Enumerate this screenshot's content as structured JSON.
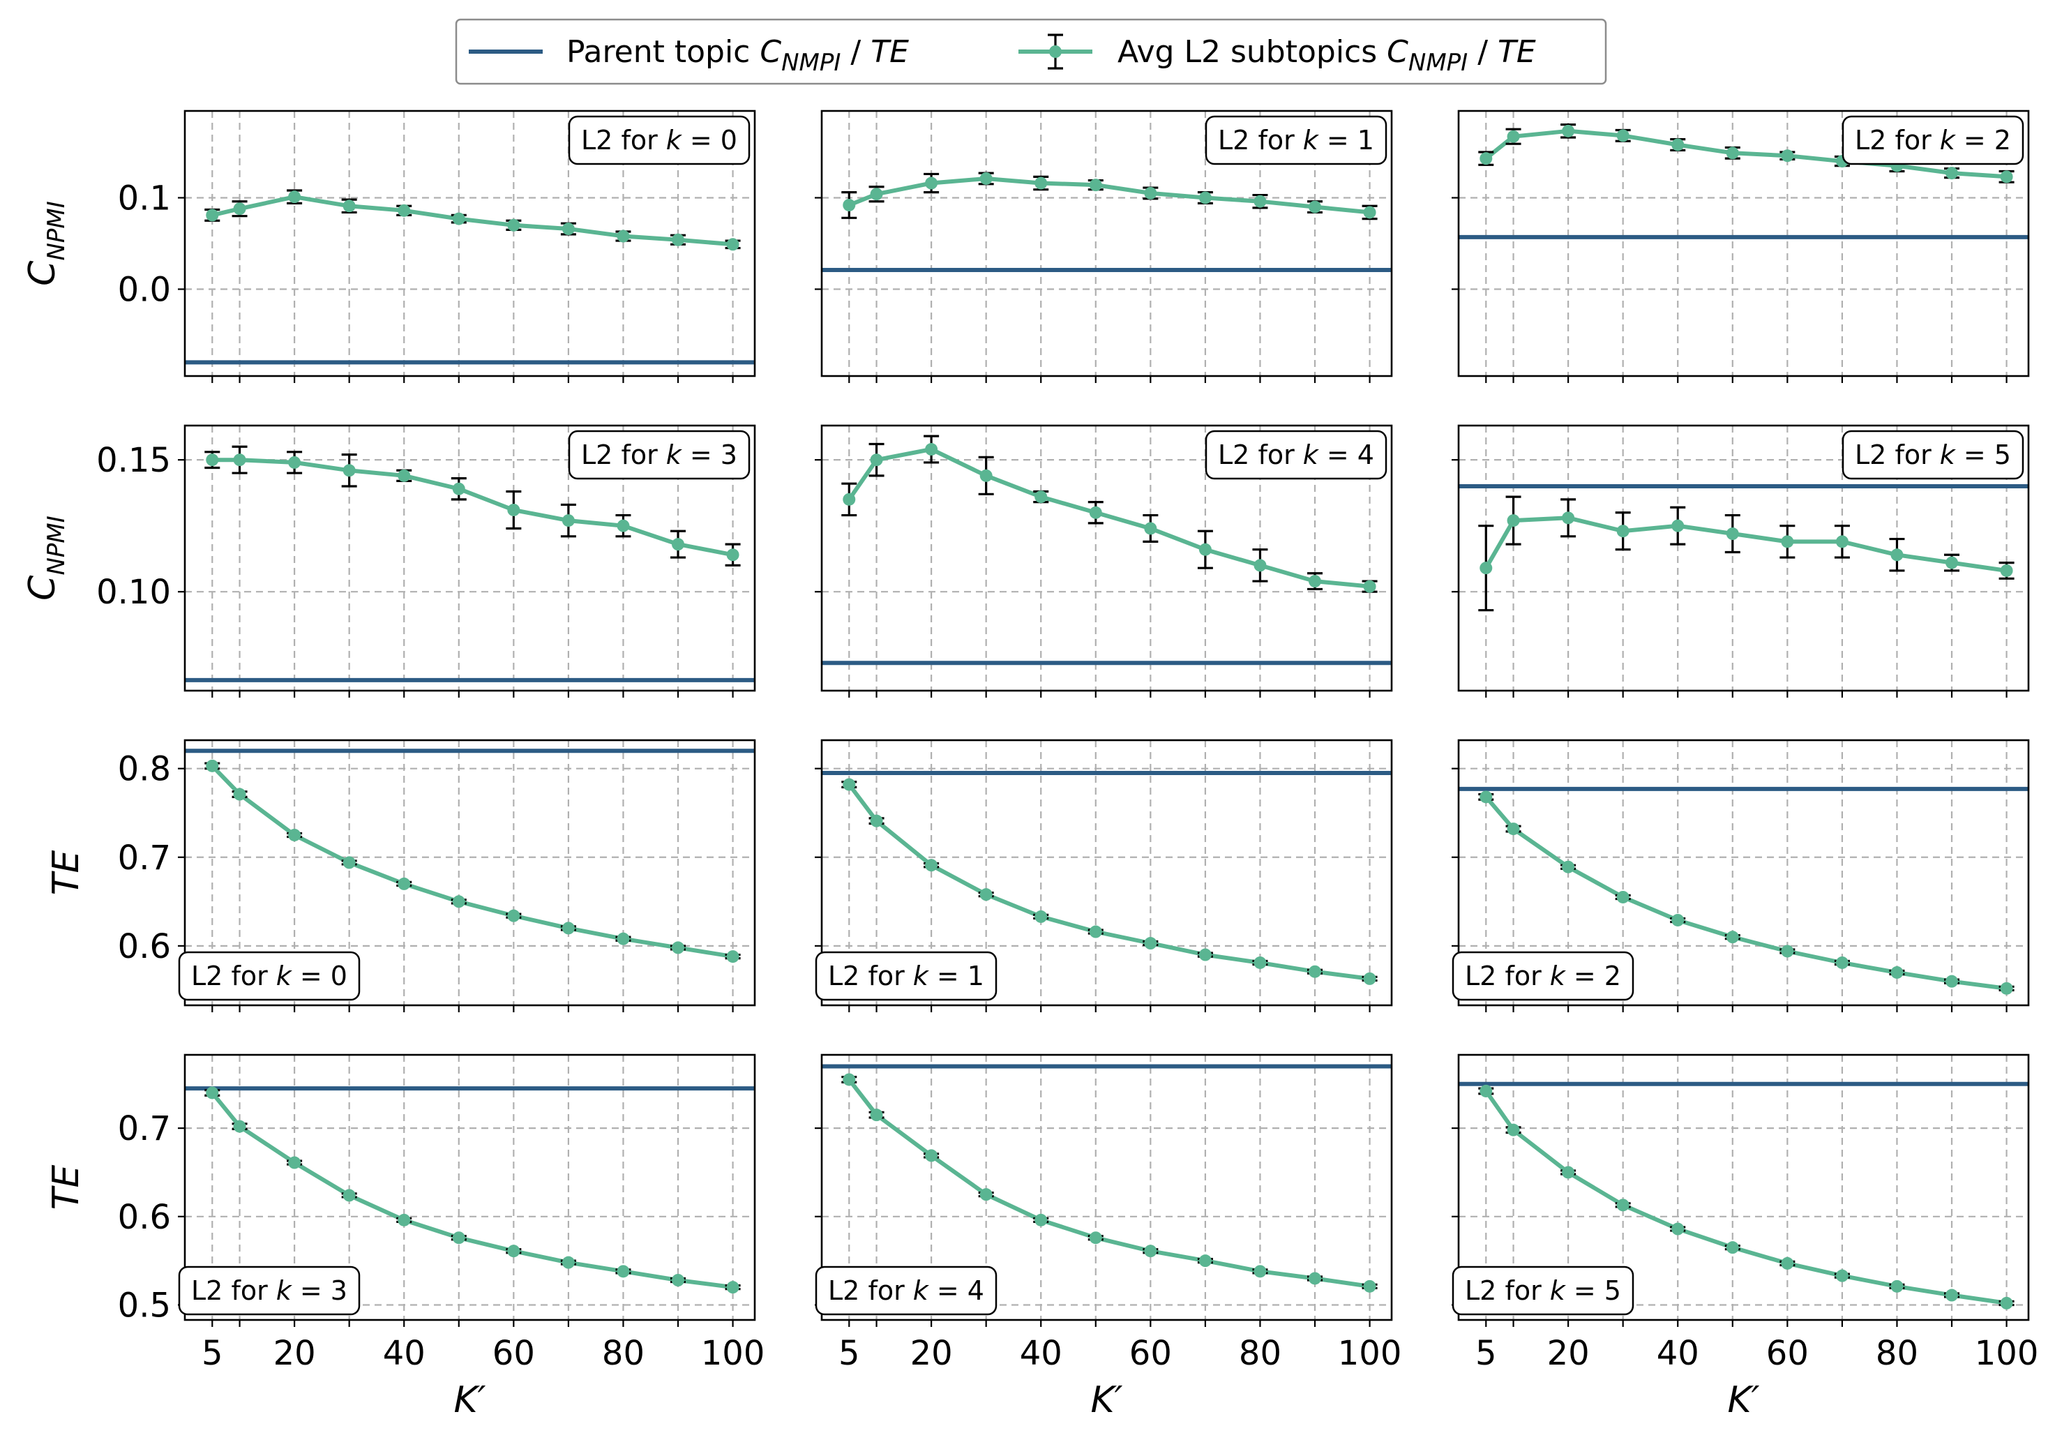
{
  "legend": {
    "parent_label": "Parent topic",
    "avg_label": "Avg L2 subtopics",
    "metric_main": "C",
    "metric_sub": "NMPI",
    "metric_sep": " / ",
    "metric_alt": "TE",
    "colors": {
      "parent": "#2c5b84",
      "avg": "#5ab592",
      "error": "#000000"
    }
  },
  "chart_data": [
    {
      "type": "line",
      "label_prefix": "L2 for ",
      "label_var": "k",
      "label_eq": " = ",
      "label_k": "0",
      "label_pos": "top-right",
      "metric": "npmi",
      "ylabel_main": "C",
      "ylabel_sub": "NPMI",
      "xlabel": "",
      "x": [
        5,
        10,
        20,
        30,
        40,
        50,
        60,
        70,
        80,
        90,
        100
      ],
      "y": [
        0.081,
        0.088,
        0.101,
        0.091,
        0.086,
        0.077,
        0.07,
        0.066,
        0.058,
        0.054,
        0.049
      ],
      "err": [
        0.006,
        0.008,
        0.007,
        0.007,
        0.005,
        0.004,
        0.005,
        0.006,
        0.005,
        0.005,
        0.004
      ],
      "parent": -0.08,
      "ylim": [
        -0.095,
        0.195
      ],
      "yticks": [
        0.0,
        0.1
      ],
      "ytick_labels": [
        "0.0",
        "0.1"
      ],
      "xticks": [
        5,
        20,
        40,
        60,
        80,
        100
      ],
      "xtick_labels": [
        "5",
        "20",
        "40",
        "60",
        "80",
        "100"
      ],
      "xgrid": [
        5,
        10,
        20,
        30,
        40,
        50,
        60,
        70,
        80,
        90,
        100
      ]
    },
    {
      "type": "line",
      "label_prefix": "L2 for ",
      "label_var": "k",
      "label_eq": " = ",
      "label_k": "1",
      "label_pos": "top-right",
      "metric": "npmi",
      "ylabel_main": "",
      "ylabel_sub": "",
      "xlabel": "",
      "x": [
        5,
        10,
        20,
        30,
        40,
        50,
        60,
        70,
        80,
        90,
        100
      ],
      "y": [
        0.092,
        0.104,
        0.116,
        0.121,
        0.116,
        0.114,
        0.105,
        0.1,
        0.096,
        0.09,
        0.084
      ],
      "err": [
        0.014,
        0.008,
        0.01,
        0.006,
        0.007,
        0.005,
        0.006,
        0.006,
        0.007,
        0.006,
        0.007
      ],
      "parent": 0.021,
      "ylim": [
        -0.095,
        0.195
      ],
      "yticks": [
        0.0,
        0.1
      ],
      "ytick_labels": [
        "",
        ""
      ],
      "xticks": [
        5,
        20,
        40,
        60,
        80,
        100
      ],
      "xtick_labels": [
        "5",
        "20",
        "40",
        "60",
        "80",
        "100"
      ],
      "xgrid": [
        5,
        10,
        20,
        30,
        40,
        50,
        60,
        70,
        80,
        90,
        100
      ]
    },
    {
      "type": "line",
      "label_prefix": "L2 for ",
      "label_var": "k",
      "label_eq": " = ",
      "label_k": "2",
      "label_pos": "top-right",
      "metric": "npmi",
      "ylabel_main": "",
      "ylabel_sub": "",
      "xlabel": "",
      "x": [
        5,
        10,
        20,
        30,
        40,
        50,
        60,
        70,
        80,
        90,
        100
      ],
      "y": [
        0.143,
        0.167,
        0.173,
        0.168,
        0.158,
        0.149,
        0.146,
        0.14,
        0.135,
        0.127,
        0.123
      ],
      "err": [
        0.007,
        0.008,
        0.007,
        0.006,
        0.006,
        0.006,
        0.004,
        0.005,
        0.006,
        0.005,
        0.006
      ],
      "parent": 0.057,
      "ylim": [
        -0.095,
        0.195
      ],
      "yticks": [
        0.0,
        0.1
      ],
      "ytick_labels": [
        "",
        ""
      ],
      "xticks": [
        5,
        20,
        40,
        60,
        80,
        100
      ],
      "xtick_labels": [
        "5",
        "20",
        "40",
        "60",
        "80",
        "100"
      ],
      "xgrid": [
        5,
        10,
        20,
        30,
        40,
        50,
        60,
        70,
        80,
        90,
        100
      ]
    },
    {
      "type": "line",
      "label_prefix": "L2 for ",
      "label_var": "k",
      "label_eq": " = ",
      "label_k": "3",
      "label_pos": "top-right",
      "metric": "npmi",
      "ylabel_main": "C",
      "ylabel_sub": "NPMI",
      "xlabel": "",
      "x": [
        5,
        10,
        20,
        30,
        40,
        50,
        60,
        70,
        80,
        90,
        100
      ],
      "y": [
        0.15,
        0.15,
        0.149,
        0.146,
        0.144,
        0.139,
        0.131,
        0.127,
        0.125,
        0.118,
        0.114
      ],
      "err": [
        0.003,
        0.005,
        0.004,
        0.006,
        0.002,
        0.004,
        0.007,
        0.006,
        0.004,
        0.005,
        0.004
      ],
      "parent": 0.0665,
      "ylim": [
        0.0625,
        0.163
      ],
      "yticks": [
        0.1,
        0.15
      ],
      "ytick_labels": [
        "0.10",
        "0.15"
      ],
      "xticks": [
        5,
        20,
        40,
        60,
        80,
        100
      ],
      "xtick_labels": [
        "5",
        "20",
        "40",
        "60",
        "80",
        "100"
      ],
      "xgrid": [
        5,
        10,
        20,
        30,
        40,
        50,
        60,
        70,
        80,
        90,
        100
      ]
    },
    {
      "type": "line",
      "label_prefix": "L2 for ",
      "label_var": "k",
      "label_eq": " = ",
      "label_k": "4",
      "label_pos": "top-right",
      "metric": "npmi",
      "ylabel_main": "",
      "ylabel_sub": "",
      "xlabel": "",
      "x": [
        5,
        10,
        20,
        30,
        40,
        50,
        60,
        70,
        80,
        90,
        100
      ],
      "y": [
        0.135,
        0.15,
        0.154,
        0.144,
        0.136,
        0.13,
        0.124,
        0.116,
        0.11,
        0.104,
        0.102
      ],
      "err": [
        0.006,
        0.006,
        0.005,
        0.007,
        0.002,
        0.004,
        0.005,
        0.007,
        0.006,
        0.003,
        0.002
      ],
      "parent": 0.073,
      "ylim": [
        0.0625,
        0.163
      ],
      "yticks": [
        0.1,
        0.15
      ],
      "ytick_labels": [
        "",
        ""
      ],
      "xticks": [
        5,
        20,
        40,
        60,
        80,
        100
      ],
      "xtick_labels": [
        "5",
        "20",
        "40",
        "60",
        "80",
        "100"
      ],
      "xgrid": [
        5,
        10,
        20,
        30,
        40,
        50,
        60,
        70,
        80,
        90,
        100
      ]
    },
    {
      "type": "line",
      "label_prefix": "L2 for ",
      "label_var": "k",
      "label_eq": " = ",
      "label_k": "5",
      "label_pos": "top-right",
      "metric": "npmi",
      "ylabel_main": "",
      "ylabel_sub": "",
      "xlabel": "",
      "x": [
        5,
        10,
        20,
        30,
        40,
        50,
        60,
        70,
        80,
        90,
        100
      ],
      "y": [
        0.109,
        0.127,
        0.128,
        0.123,
        0.125,
        0.122,
        0.119,
        0.119,
        0.114,
        0.111,
        0.108
      ],
      "err": [
        0.016,
        0.009,
        0.007,
        0.007,
        0.007,
        0.007,
        0.006,
        0.006,
        0.006,
        0.003,
        0.003
      ],
      "parent": 0.14,
      "ylim": [
        0.0625,
        0.163
      ],
      "yticks": [
        0.1,
        0.15
      ],
      "ytick_labels": [
        "",
        ""
      ],
      "xticks": [
        5,
        20,
        40,
        60,
        80,
        100
      ],
      "xtick_labels": [
        "5",
        "20",
        "40",
        "60",
        "80",
        "100"
      ],
      "xgrid": [
        5,
        10,
        20,
        30,
        40,
        50,
        60,
        70,
        80,
        90,
        100
      ]
    },
    {
      "type": "line",
      "label_prefix": "L2 for ",
      "label_var": "k",
      "label_eq": " = ",
      "label_k": "0",
      "label_pos": "bottom-left",
      "metric": "te",
      "ylabel_main": "TE",
      "ylabel_sub": "",
      "xlabel": "",
      "x": [
        5,
        10,
        20,
        30,
        40,
        50,
        60,
        70,
        80,
        90,
        100
      ],
      "y": [
        0.803,
        0.771,
        0.725,
        0.694,
        0.67,
        0.65,
        0.634,
        0.62,
        0.608,
        0.598,
        0.588
      ],
      "err": [
        0.003,
        0.003,
        0.002,
        0.002,
        0.002,
        0.002,
        0.002,
        0.002,
        0.002,
        0.002,
        0.002
      ],
      "parent": 0.82,
      "ylim": [
        0.533,
        0.832
      ],
      "yticks": [
        0.6,
        0.7,
        0.8
      ],
      "ytick_labels": [
        "0.6",
        "0.7",
        "0.8"
      ],
      "xticks": [
        5,
        20,
        40,
        60,
        80,
        100
      ],
      "xtick_labels": [
        "5",
        "20",
        "40",
        "60",
        "80",
        "100"
      ],
      "xgrid": [
        5,
        10,
        20,
        30,
        40,
        50,
        60,
        70,
        80,
        90,
        100
      ]
    },
    {
      "type": "line",
      "label_prefix": "L2 for ",
      "label_var": "k",
      "label_eq": " = ",
      "label_k": "1",
      "label_pos": "bottom-left",
      "metric": "te",
      "ylabel_main": "",
      "ylabel_sub": "",
      "xlabel": "",
      "x": [
        5,
        10,
        20,
        30,
        40,
        50,
        60,
        70,
        80,
        90,
        100
      ],
      "y": [
        0.782,
        0.741,
        0.691,
        0.658,
        0.633,
        0.616,
        0.603,
        0.59,
        0.581,
        0.571,
        0.563
      ],
      "err": [
        0.003,
        0.003,
        0.002,
        0.002,
        0.002,
        0.002,
        0.002,
        0.002,
        0.002,
        0.002,
        0.002
      ],
      "parent": 0.795,
      "ylim": [
        0.533,
        0.832
      ],
      "yticks": [
        0.6,
        0.7,
        0.8
      ],
      "ytick_labels": [
        "",
        "",
        ""
      ],
      "xticks": [
        5,
        20,
        40,
        60,
        80,
        100
      ],
      "xtick_labels": [
        "5",
        "20",
        "40",
        "60",
        "80",
        "100"
      ],
      "xgrid": [
        5,
        10,
        20,
        30,
        40,
        50,
        60,
        70,
        80,
        90,
        100
      ]
    },
    {
      "type": "line",
      "label_prefix": "L2 for ",
      "label_var": "k",
      "label_eq": " = ",
      "label_k": "2",
      "label_pos": "bottom-left",
      "metric": "te",
      "ylabel_main": "",
      "ylabel_sub": "",
      "xlabel": "",
      "x": [
        5,
        10,
        20,
        30,
        40,
        50,
        60,
        70,
        80,
        90,
        100
      ],
      "y": [
        0.768,
        0.732,
        0.689,
        0.655,
        0.629,
        0.61,
        0.594,
        0.581,
        0.57,
        0.56,
        0.552
      ],
      "err": [
        0.003,
        0.003,
        0.002,
        0.002,
        0.002,
        0.002,
        0.002,
        0.002,
        0.002,
        0.002,
        0.002
      ],
      "parent": 0.777,
      "ylim": [
        0.533,
        0.832
      ],
      "yticks": [
        0.6,
        0.7,
        0.8
      ],
      "ytick_labels": [
        "",
        "",
        ""
      ],
      "xticks": [
        5,
        20,
        40,
        60,
        80,
        100
      ],
      "xtick_labels": [
        "5",
        "20",
        "40",
        "60",
        "80",
        "100"
      ],
      "xgrid": [
        5,
        10,
        20,
        30,
        40,
        50,
        60,
        70,
        80,
        90,
        100
      ]
    },
    {
      "type": "line",
      "label_prefix": "L2 for ",
      "label_var": "k",
      "label_eq": " = ",
      "label_k": "3",
      "label_pos": "bottom-left",
      "metric": "te",
      "ylabel_main": "TE",
      "ylabel_sub": "",
      "xlabel": "K′",
      "x": [
        5,
        10,
        20,
        30,
        40,
        50,
        60,
        70,
        80,
        90,
        100
      ],
      "y": [
        0.74,
        0.702,
        0.661,
        0.624,
        0.596,
        0.576,
        0.561,
        0.548,
        0.538,
        0.528,
        0.52
      ],
      "err": [
        0.003,
        0.003,
        0.002,
        0.002,
        0.002,
        0.002,
        0.002,
        0.002,
        0.002,
        0.002,
        0.002
      ],
      "parent": 0.745,
      "ylim": [
        0.483,
        0.783
      ],
      "yticks": [
        0.5,
        0.6,
        0.7
      ],
      "ytick_labels": [
        "0.5",
        "0.6",
        "0.7"
      ],
      "xticks": [
        5,
        20,
        40,
        60,
        80,
        100
      ],
      "xtick_labels": [
        "5",
        "20",
        "40",
        "60",
        "80",
        "100"
      ],
      "xgrid": [
        5,
        10,
        20,
        30,
        40,
        50,
        60,
        70,
        80,
        90,
        100
      ]
    },
    {
      "type": "line",
      "label_prefix": "L2 for ",
      "label_var": "k",
      "label_eq": " = ",
      "label_k": "4",
      "label_pos": "bottom-left",
      "metric": "te",
      "ylabel_main": "",
      "ylabel_sub": "",
      "xlabel": "K′",
      "x": [
        5,
        10,
        20,
        30,
        40,
        50,
        60,
        70,
        80,
        90,
        100
      ],
      "y": [
        0.755,
        0.715,
        0.669,
        0.625,
        0.596,
        0.576,
        0.561,
        0.55,
        0.538,
        0.53,
        0.521
      ],
      "err": [
        0.003,
        0.003,
        0.002,
        0.002,
        0.002,
        0.002,
        0.002,
        0.002,
        0.002,
        0.002,
        0.002
      ],
      "parent": 0.77,
      "ylim": [
        0.483,
        0.783
      ],
      "yticks": [
        0.5,
        0.6,
        0.7
      ],
      "ytick_labels": [
        "",
        "",
        ""
      ],
      "xticks": [
        5,
        20,
        40,
        60,
        80,
        100
      ],
      "xtick_labels": [
        "5",
        "20",
        "40",
        "60",
        "80",
        "100"
      ],
      "xgrid": [
        5,
        10,
        20,
        30,
        40,
        50,
        60,
        70,
        80,
        90,
        100
      ]
    },
    {
      "type": "line",
      "label_prefix": "L2 for ",
      "label_var": "k",
      "label_eq": " = ",
      "label_k": "5",
      "label_pos": "bottom-left",
      "metric": "te",
      "ylabel_main": "",
      "ylabel_sub": "",
      "xlabel": "K′",
      "x": [
        5,
        10,
        20,
        30,
        40,
        50,
        60,
        70,
        80,
        90,
        100
      ],
      "y": [
        0.742,
        0.698,
        0.65,
        0.613,
        0.586,
        0.565,
        0.547,
        0.533,
        0.521,
        0.511,
        0.502
      ],
      "err": [
        0.003,
        0.003,
        0.002,
        0.002,
        0.002,
        0.002,
        0.002,
        0.002,
        0.002,
        0.002,
        0.002
      ],
      "parent": 0.75,
      "ylim": [
        0.483,
        0.783
      ],
      "yticks": [
        0.5,
        0.6,
        0.7
      ],
      "ytick_labels": [
        "",
        "",
        ""
      ],
      "xticks": [
        5,
        20,
        40,
        60,
        80,
        100
      ],
      "xtick_labels": [
        "5",
        "20",
        "40",
        "60",
        "80",
        "100"
      ],
      "xgrid": [
        5,
        10,
        20,
        30,
        40,
        50,
        60,
        70,
        80,
        90,
        100
      ]
    }
  ]
}
